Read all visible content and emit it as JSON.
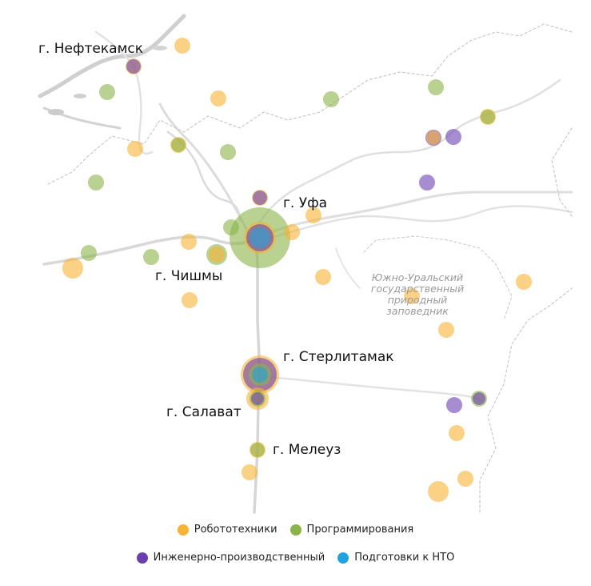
{
  "colors": {
    "robotics": "#f9b233",
    "programming": "#8ab44a",
    "engineering": "#6a3fb0",
    "nto": "#1fa3e0",
    "road": "#dcdcdc",
    "water": "#c8c8c8",
    "border": "#c4c4c4"
  },
  "cities": {
    "neftekamsk": "г. Нефтекамск",
    "ufa": "г. Уфа",
    "chishmy": "г. Чишмы",
    "sterlitamak": "г. Стерлитамак",
    "salavat": "г. Салават",
    "meleuz": "г. Мелеуз"
  },
  "reserve_label": {
    "line1": "Южно-Уральский",
    "line2": "государственный",
    "line3": "природный",
    "line4": "заповедник"
  },
  "legend": {
    "row1": [
      {
        "key": "robotics",
        "label": "Робототехники"
      },
      {
        "key": "programming",
        "label": "Программирования"
      }
    ],
    "row2": [
      {
        "key": "engineering",
        "label": "Инженерно-производственный"
      },
      {
        "key": "nto",
        "label": "Подготовки к НТО"
      }
    ]
  },
  "markers": [
    {
      "id": "m1",
      "types": [
        "robotics"
      ]
    },
    {
      "id": "m2",
      "types": [
        "robotics",
        "engineering"
      ]
    },
    {
      "id": "m3",
      "types": [
        "programming"
      ]
    },
    {
      "id": "m4",
      "types": [
        "robotics"
      ]
    },
    {
      "id": "m5",
      "types": [
        "programming"
      ]
    },
    {
      "id": "m6",
      "types": [
        "programming"
      ]
    },
    {
      "id": "m7",
      "types": [
        "engineering",
        "robotics"
      ]
    },
    {
      "id": "m8",
      "types": [
        "engineering"
      ]
    },
    {
      "id": "m9",
      "types": [
        "robotics",
        "programming"
      ]
    },
    {
      "id": "m10",
      "types": [
        "robotics"
      ]
    },
    {
      "id": "m11",
      "types": [
        "robotics",
        "programming"
      ]
    },
    {
      "id": "m12",
      "types": [
        "programming"
      ]
    },
    {
      "id": "m13",
      "types": [
        "engineering"
      ]
    },
    {
      "id": "m14",
      "types": [
        "programming"
      ]
    },
    {
      "id": "m15",
      "types": [
        "robotics",
        "engineering"
      ]
    },
    {
      "id": "m16",
      "types": [
        "robotics"
      ]
    },
    {
      "id": "m17",
      "types": [
        "programming"
      ]
    },
    {
      "id": "m18",
      "types": [
        "programming",
        "robotics",
        "engineering",
        "nto"
      ]
    },
    {
      "id": "m19",
      "types": [
        "robotics"
      ]
    },
    {
      "id": "m20",
      "types": [
        "robotics"
      ]
    },
    {
      "id": "m21",
      "types": [
        "programming"
      ]
    },
    {
      "id": "m22",
      "types": [
        "programming"
      ]
    },
    {
      "id": "m23",
      "types": [
        "programming",
        "robotics"
      ]
    },
    {
      "id": "m24",
      "types": [
        "robotics"
      ]
    },
    {
      "id": "m25",
      "types": [
        "robotics"
      ]
    },
    {
      "id": "m26",
      "types": [
        "robotics"
      ]
    },
    {
      "id": "m27",
      "types": [
        "robotics"
      ]
    },
    {
      "id": "m28",
      "types": [
        "robotics"
      ]
    },
    {
      "id": "m29",
      "types": [
        "robotics",
        "engineering",
        "programming",
        "nto"
      ]
    },
    {
      "id": "m30",
      "types": [
        "robotics",
        "programming",
        "engineering"
      ]
    },
    {
      "id": "m31",
      "types": [
        "engineering"
      ]
    },
    {
      "id": "m32",
      "types": [
        "programming",
        "engineering"
      ]
    },
    {
      "id": "m33",
      "types": [
        "robotics"
      ]
    },
    {
      "id": "m34",
      "types": [
        "robotics",
        "programming"
      ]
    },
    {
      "id": "m35",
      "types": [
        "robotics"
      ]
    },
    {
      "id": "m36",
      "types": [
        "robotics"
      ]
    },
    {
      "id": "m37",
      "types": [
        "robotics"
      ]
    },
    {
      "id": "m38",
      "types": [
        "robotics"
      ]
    }
  ]
}
